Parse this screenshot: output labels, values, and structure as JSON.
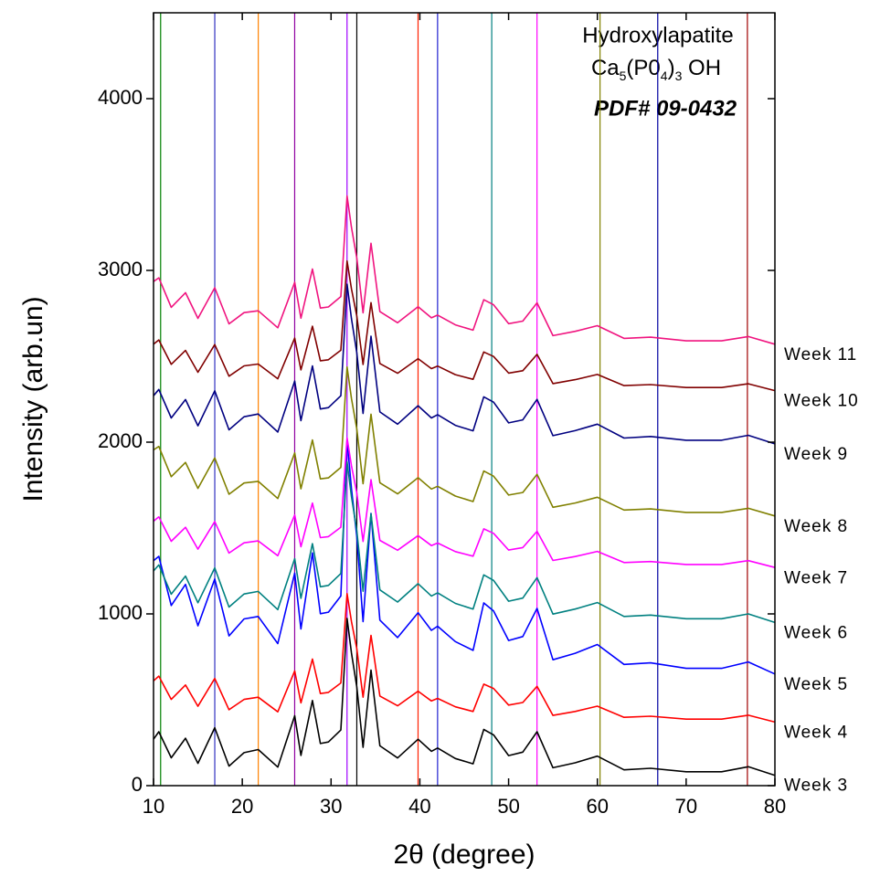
{
  "chart_data": {
    "type": "line",
    "xlabel": "2θ (degree)",
    "ylabel": "Intensity (arb.un)",
    "annotation": {
      "line1": "Hydroxylapatite",
      "line2": [
        "Ca",
        "5",
        "(P0",
        "4",
        ")",
        "3",
        " OH"
      ],
      "line3": "PDF# 09-0432"
    },
    "xlim": [
      10,
      80
    ],
    "xticks": [
      10,
      20,
      30,
      40,
      50,
      60,
      70,
      80
    ],
    "ylim": [
      0,
      4500
    ],
    "yticks": [
      0,
      1000,
      2000,
      3000,
      4000
    ],
    "reference_lines": [
      {
        "x": 10.8,
        "color": "#008000"
      },
      {
        "x": 16.9,
        "color": "#3030c0"
      },
      {
        "x": 21.8,
        "color": "#ff8000"
      },
      {
        "x": 25.9,
        "color": "#9000a0"
      },
      {
        "x": 31.8,
        "color": "#a000ff"
      },
      {
        "x": 32.9,
        "color": "#000000"
      },
      {
        "x": 39.8,
        "color": "#ff2000"
      },
      {
        "x": 42.0,
        "color": "#2020d0"
      },
      {
        "x": 48.1,
        "color": "#008080"
      },
      {
        "x": 53.2,
        "color": "#ff00ff"
      },
      {
        "x": 60.3,
        "color": "#808000"
      },
      {
        "x": 66.8,
        "color": "#0000a0"
      },
      {
        "x": 76.9,
        "color": "#a00000"
      }
    ],
    "x": [
      10,
      10.6,
      12,
      13.6,
      15,
      16.9,
      18.5,
      20.2,
      21.8,
      24,
      25.9,
      26.6,
      27.9,
      28.8,
      29.7,
      31.1,
      31.8,
      32.3,
      32.9,
      33.6,
      34.5,
      35.5,
      37.5,
      39.8,
      41.3,
      42,
      44,
      46,
      47.2,
      48.3,
      50,
      51.6,
      53.2,
      55,
      57.5,
      60,
      63,
      66,
      70,
      74,
      77,
      80
    ],
    "series": [
      {
        "name": "Week 3",
        "color": "#000000",
        "values": [
          270,
          314,
          162,
          276,
          130,
          337,
          114,
          192,
          210,
          108,
          407,
          176,
          496,
          245,
          254,
          324,
          974,
          773,
          573,
          223,
          673,
          232,
          161,
          270,
          200,
          219,
          158,
          127,
          327,
          296,
          175,
          195,
          314,
          104,
          133,
          172,
          92,
          101,
          81,
          81,
          110,
          60
        ]
      },
      {
        "name": "Week 4",
        "color": "#ff0000",
        "values": [
          610,
          638,
          502,
          586,
          462,
          624,
          442,
          502,
          515,
          430,
          668,
          482,
          737,
          536,
          543,
          598,
          1118,
          956,
          796,
          515,
          875,
          522,
          465,
          550,
          493,
          508,
          459,
          432,
          591,
          566,
          469,
          484,
          578,
          409,
          432,
          463,
          398,
          404,
          387,
          387,
          410,
          370
        ]
      },
      {
        "name": "Week 5",
        "color": "#0000ff",
        "values": [
          1310,
          1335,
          1049,
          1172,
          931,
          1203,
          872,
          971,
          985,
          827,
          1238,
          912,
          1355,
          1001,
          1010,
          1104,
          2014,
          1729,
          1449,
          955,
          1585,
          964,
          862,
          1007,
          904,
          928,
          839,
          788,
          1064,
          1017,
          845,
          868,
          1032,
          733,
          771,
          822,
          706,
          715,
          683,
          683,
          720,
          650
        ]
      },
      {
        "name": "Week 6",
        "color": "#008080",
        "values": [
          1250,
          1285,
          1115,
          1220,
          1065,
          1268,
          1040,
          1116,
          1131,
          1025,
          1322,
          1091,
          1409,
          1158,
          1166,
          1235,
          1885,
          1683,
          1483,
          1132,
          1582,
          1140,
          1069,
          1176,
          1104,
          1123,
          1061,
          1028,
          1227,
          1195,
          1074,
          1092,
          1211,
          999,
          1028,
          1066,
          985,
          993,
          972,
          972,
          1000,
          950
        ]
      },
      {
        "name": "Week 7",
        "color": "#ff00ff",
        "values": [
          1540,
          1565,
          1423,
          1504,
          1377,
          1538,
          1354,
          1414,
          1425,
          1339,
          1576,
          1391,
          1645,
          1444,
          1450,
          1505,
          2025,
          1863,
          1703,
          1422,
          1782,
          1428,
          1371,
          1456,
          1398,
          1413,
          1363,
          1336,
          1495,
          1469,
          1372,
          1386,
          1481,
          1311,
          1334,
          1364,
          1299,
          1305,
          1288,
          1288,
          1310,
          1270
        ]
      },
      {
        "name": "Week 8",
        "color": "#808000",
        "values": [
          1955,
          1975,
          1799,
          1882,
          1731,
          1908,
          1697,
          1762,
          1772,
          1672,
          1937,
          1728,
          2013,
          1786,
          1792,
          1853,
          2438,
          2255,
          2075,
          1758,
          2163,
          1764,
          1699,
          1793,
          1727,
          1743,
          1686,
          1654,
          1832,
          1802,
          1692,
          1707,
          1813,
          1621,
          1646,
          1679,
          1605,
          1611,
          1591,
          1591,
          1615,
          1570
        ]
      },
      {
        "name": "Week 9",
        "color": "#000080",
        "values": [
          2270,
          2307,
          2141,
          2248,
          2095,
          2299,
          2072,
          2148,
          2164,
          2059,
          2356,
          2125,
          2444,
          2193,
          2201,
          2270,
          2920,
          2719,
          2519,
          2167,
          2617,
          2176,
          2105,
          2212,
          2141,
          2160,
          2098,
          2066,
          2264,
          2233,
          2112,
          2130,
          2249,
          2038,
          2067,
          2105,
          2024,
          2033,
          2011,
          2011,
          2040,
          1990
        ]
      },
      {
        "name": "Week 10",
        "color": "#800000",
        "values": [
          2570,
          2595,
          2453,
          2534,
          2407,
          2568,
          2384,
          2444,
          2455,
          2369,
          2606,
          2421,
          2675,
          2474,
          2480,
          2535,
          3055,
          2893,
          2733,
          2452,
          2812,
          2458,
          2401,
          2486,
          2428,
          2443,
          2393,
          2366,
          2525,
          2499,
          2402,
          2416,
          2511,
          2341,
          2364,
          2394,
          2329,
          2335,
          2318,
          2318,
          2340,
          2300
        ]
      },
      {
        "name": "Week 11",
        "color": "#f0147f",
        "values": [
          2935,
          2957,
          2785,
          2870,
          2721,
          2899,
          2689,
          2754,
          2765,
          2666,
          2931,
          2722,
          3008,
          2781,
          2787,
          2848,
          3433,
          3251,
          3071,
          2753,
          3158,
          2760,
          2695,
          2789,
          2724,
          2740,
          2683,
          2652,
          2829,
          2800,
          2690,
          2705,
          2811,
          2620,
          2645,
          2678,
          2604,
          2611,
          2590,
          2590,
          2615,
          2570
        ]
      }
    ]
  }
}
